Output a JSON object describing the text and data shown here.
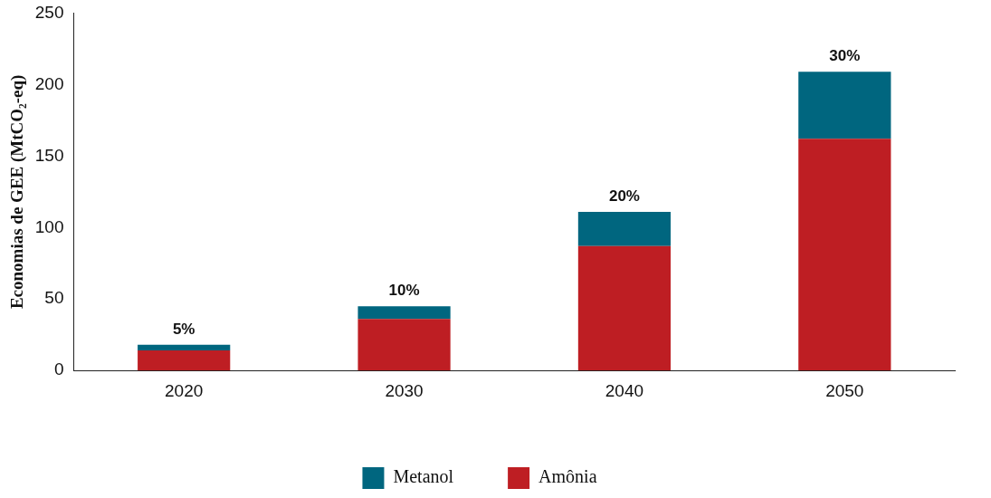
{
  "chart_data": {
    "type": "bar",
    "ylabel": "Economias de GEE (MtCO₂-eq)",
    "categories": [
      "2020",
      "2030",
      "2040",
      "2050"
    ],
    "stacked": true,
    "series": [
      {
        "name": "Amônia",
        "color": "#be1e23",
        "values": [
          14,
          36,
          87,
          162
        ]
      },
      {
        "name": "Metanol",
        "color": "#00667f",
        "values": [
          4,
          9,
          24,
          47
        ]
      }
    ],
    "annotations": [
      {
        "text": "5%",
        "x": "2020",
        "y": 18
      },
      {
        "text": "10%",
        "x": "2030",
        "y": 45
      },
      {
        "text": "20%",
        "x": "2040",
        "y": 111
      },
      {
        "text": "30%",
        "x": "2050",
        "y": 209
      }
    ],
    "ylim": [
      0,
      250
    ],
    "yticks": [
      0,
      50,
      100,
      150,
      200,
      250
    ],
    "grid": false,
    "legend": "bottom"
  }
}
